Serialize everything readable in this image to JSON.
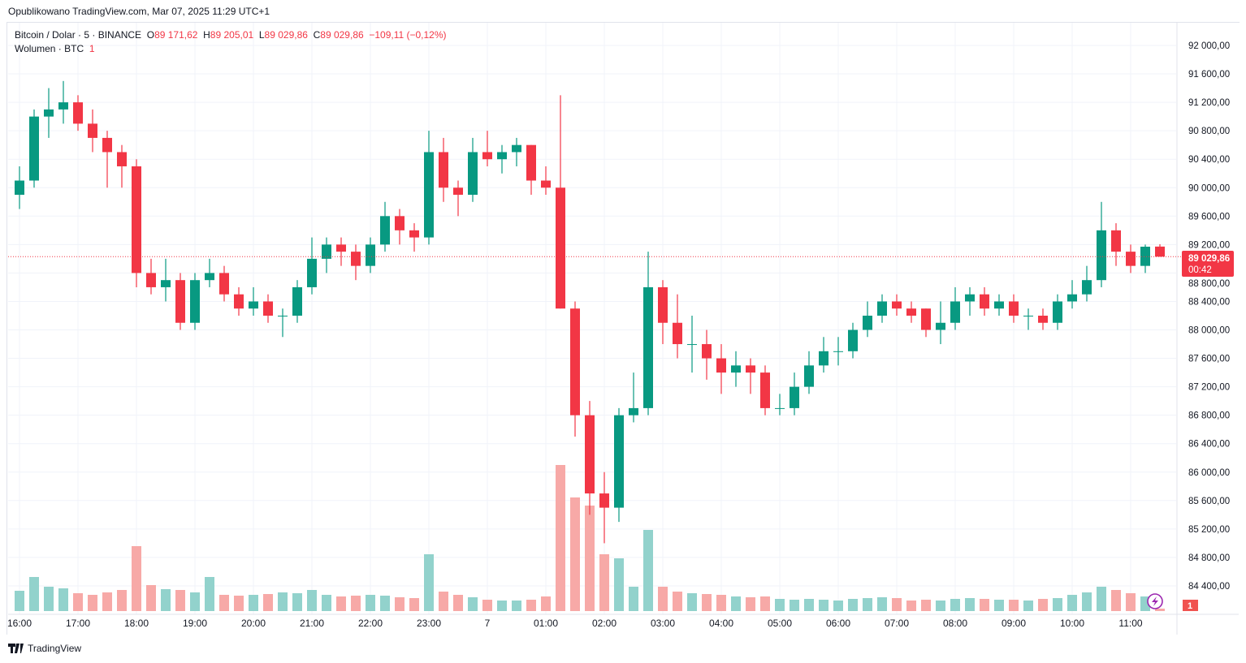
{
  "published": "Opublikowano TradingView.com, Mar 07, 2025 11:29 UTC+1",
  "legend": {
    "symbol": "Bitcoin / Dolar · 5 · BINANCE",
    "o_label": "O",
    "o": "89 171,62",
    "h_label": "H",
    "h": "89 205,01",
    "l_label": "L",
    "l": "89 029,86",
    "c_label": "C",
    "c": "89 029,86",
    "change": "−109,11 (−0,12%)",
    "volume_label": "Wolumen · BTC",
    "volume_value": "1"
  },
  "last_price": {
    "value": "89 029,86",
    "countdown": "00:42"
  },
  "volume_badge": "1",
  "brand": "TradingView",
  "colors": {
    "up": "#089981",
    "down": "#f23645",
    "up_vol": "#92d2cc",
    "down_vol": "#f7a9a7"
  },
  "chart_data": {
    "type": "candlestick",
    "title": "Bitcoin / Dolar · 5 · BINANCE",
    "ylim": [
      84200,
      92200
    ],
    "y_ticks": [
      "92 000,00",
      "91 600,00",
      "91 200,00",
      "90 800,00",
      "90 400,00",
      "90 000,00",
      "89 600,00",
      "89 200,00",
      "88 800,00",
      "88 400,00",
      "88 000,00",
      "87 600,00",
      "87 200,00",
      "86 800,00",
      "86 400,00",
      "86 000,00",
      "85 600,00",
      "85 200,00",
      "84 800,00",
      "84 400,00"
    ],
    "x_ticks": [
      "16:00",
      "17:00",
      "18:00",
      "19:00",
      "20:00",
      "21:00",
      "22:00",
      "23:00",
      "7",
      "01:00",
      "02:00",
      "03:00",
      "04:00",
      "05:00",
      "06:00",
      "07:00",
      "08:00",
      "09:00",
      "10:00",
      "11:00"
    ],
    "last_close": 89029.86,
    "columns": [
      "time",
      "open",
      "high",
      "low",
      "close",
      "volume"
    ],
    "candles": [
      [
        "16:00",
        89900,
        90300,
        89700,
        90100,
        250
      ],
      [
        "16:15",
        90100,
        91100,
        90000,
        91000,
        420
      ],
      [
        "16:30",
        91000,
        91400,
        90700,
        91100,
        300
      ],
      [
        "16:45",
        91100,
        91500,
        90900,
        91200,
        280
      ],
      [
        "17:00",
        91200,
        91300,
        90800,
        90900,
        220
      ],
      [
        "17:15",
        90900,
        91100,
        90500,
        90700,
        200
      ],
      [
        "17:30",
        90700,
        90800,
        90000,
        90500,
        230
      ],
      [
        "17:45",
        90500,
        90600,
        90000,
        90300,
        260
      ],
      [
        "18:00",
        90300,
        90400,
        88600,
        88800,
        800
      ],
      [
        "18:15",
        88800,
        89000,
        88500,
        88600,
        320
      ],
      [
        "18:30",
        88600,
        89000,
        88400,
        88700,
        270
      ],
      [
        "18:45",
        88700,
        88800,
        88000,
        88100,
        260
      ],
      [
        "19:00",
        88100,
        88800,
        88000,
        88700,
        230
      ],
      [
        "19:15",
        88700,
        89000,
        88600,
        88800,
        420
      ],
      [
        "19:30",
        88800,
        88900,
        88400,
        88500,
        200
      ],
      [
        "19:45",
        88500,
        88600,
        88200,
        88300,
        190
      ],
      [
        "20:00",
        88300,
        88600,
        88200,
        88400,
        200
      ],
      [
        "20:15",
        88400,
        88500,
        88100,
        88200,
        210
      ],
      [
        "20:30",
        88200,
        88300,
        87900,
        88200,
        230
      ],
      [
        "20:45",
        88200,
        88700,
        88100,
        88600,
        220
      ],
      [
        "21:00",
        88600,
        89300,
        88500,
        89000,
        260
      ],
      [
        "21:15",
        89000,
        89300,
        88800,
        89200,
        200
      ],
      [
        "21:30",
        89200,
        89300,
        88900,
        89100,
        180
      ],
      [
        "21:45",
        89100,
        89200,
        88700,
        88900,
        190
      ],
      [
        "22:00",
        88900,
        89300,
        88800,
        89200,
        200
      ],
      [
        "22:15",
        89200,
        89800,
        89100,
        89600,
        190
      ],
      [
        "22:30",
        89600,
        89700,
        89200,
        89400,
        170
      ],
      [
        "22:45",
        89400,
        89500,
        89100,
        89300,
        160
      ],
      [
        "23:00",
        89300,
        90800,
        89200,
        90500,
        700
      ],
      [
        "23:15",
        90500,
        90700,
        89800,
        90000,
        240
      ],
      [
        "23:30",
        90000,
        90100,
        89600,
        89900,
        200
      ],
      [
        "23:45",
        89900,
        90700,
        89800,
        90500,
        170
      ],
      [
        "00:00",
        90500,
        90800,
        90300,
        90400,
        140
      ],
      [
        "00:15",
        90400,
        90600,
        90200,
        90500,
        130
      ],
      [
        "00:30",
        90500,
        90700,
        90300,
        90600,
        130
      ],
      [
        "00:45",
        90600,
        90600,
        89900,
        90100,
        140
      ],
      [
        "01:00",
        90100,
        90300,
        89900,
        90000,
        180
      ],
      [
        "01:15",
        90000,
        91300,
        88300,
        88300,
        1800
      ],
      [
        "01:30",
        88300,
        88400,
        86500,
        86800,
        1400
      ],
      [
        "01:45",
        86800,
        87000,
        85400,
        85700,
        1300
      ],
      [
        "02:00",
        85700,
        86000,
        85000,
        85500,
        700
      ],
      [
        "02:15",
        85500,
        86900,
        85300,
        86800,
        650
      ],
      [
        "02:30",
        86800,
        87400,
        86700,
        86900,
        300
      ],
      [
        "02:45",
        86900,
        89100,
        86800,
        88600,
        1000
      ],
      [
        "03:00",
        88600,
        88700,
        87800,
        88100,
        300
      ],
      [
        "03:15",
        88100,
        88500,
        87600,
        87800,
        240
      ],
      [
        "03:30",
        87800,
        88200,
        87400,
        87800,
        220
      ],
      [
        "03:45",
        87800,
        88000,
        87300,
        87600,
        210
      ],
      [
        "04:00",
        87600,
        87800,
        87100,
        87400,
        200
      ],
      [
        "04:15",
        87400,
        87700,
        87200,
        87500,
        180
      ],
      [
        "04:30",
        87500,
        87600,
        87100,
        87400,
        170
      ],
      [
        "04:45",
        87400,
        87500,
        86800,
        86900,
        180
      ],
      [
        "05:00",
        86900,
        87100,
        86800,
        86900,
        150
      ],
      [
        "05:15",
        86900,
        87400,
        86800,
        87200,
        140
      ],
      [
        "05:30",
        87200,
        87700,
        87100,
        87500,
        150
      ],
      [
        "05:45",
        87500,
        87900,
        87400,
        87700,
        140
      ],
      [
        "06:00",
        87700,
        87900,
        87500,
        87700,
        130
      ],
      [
        "06:15",
        87700,
        88100,
        87600,
        88000,
        150
      ],
      [
        "06:30",
        88000,
        88400,
        87900,
        88200,
        160
      ],
      [
        "06:45",
        88200,
        88500,
        88100,
        88400,
        170
      ],
      [
        "07:00",
        88400,
        88500,
        88200,
        88300,
        160
      ],
      [
        "07:15",
        88300,
        88400,
        88100,
        88200,
        130
      ],
      [
        "07:30",
        88300,
        88300,
        87900,
        88000,
        140
      ],
      [
        "07:45",
        88000,
        88400,
        87800,
        88100,
        130
      ],
      [
        "08:00",
        88100,
        88600,
        88000,
        88400,
        150
      ],
      [
        "08:15",
        88400,
        88600,
        88200,
        88500,
        160
      ],
      [
        "08:30",
        88500,
        88600,
        88200,
        88300,
        150
      ],
      [
        "08:45",
        88300,
        88500,
        88200,
        88400,
        140
      ],
      [
        "09:00",
        88400,
        88500,
        88100,
        88200,
        140
      ],
      [
        "09:15",
        88200,
        88300,
        88000,
        88200,
        130
      ],
      [
        "09:30",
        88200,
        88300,
        88000,
        88100,
        150
      ],
      [
        "09:45",
        88100,
        88500,
        88000,
        88400,
        160
      ],
      [
        "10:00",
        88400,
        88700,
        88300,
        88500,
        200
      ],
      [
        "10:15",
        88500,
        88900,
        88400,
        88700,
        230
      ],
      [
        "10:30",
        88700,
        89800,
        88600,
        89400,
        300
      ],
      [
        "10:45",
        89400,
        89500,
        88900,
        89100,
        260
      ],
      [
        "11:00",
        89100,
        89200,
        88800,
        88900,
        220
      ],
      [
        "11:15",
        88900,
        89200,
        88800,
        89170,
        180
      ],
      [
        "11:25",
        89171.62,
        89205.01,
        89029.86,
        89029.86,
        30
      ]
    ]
  }
}
